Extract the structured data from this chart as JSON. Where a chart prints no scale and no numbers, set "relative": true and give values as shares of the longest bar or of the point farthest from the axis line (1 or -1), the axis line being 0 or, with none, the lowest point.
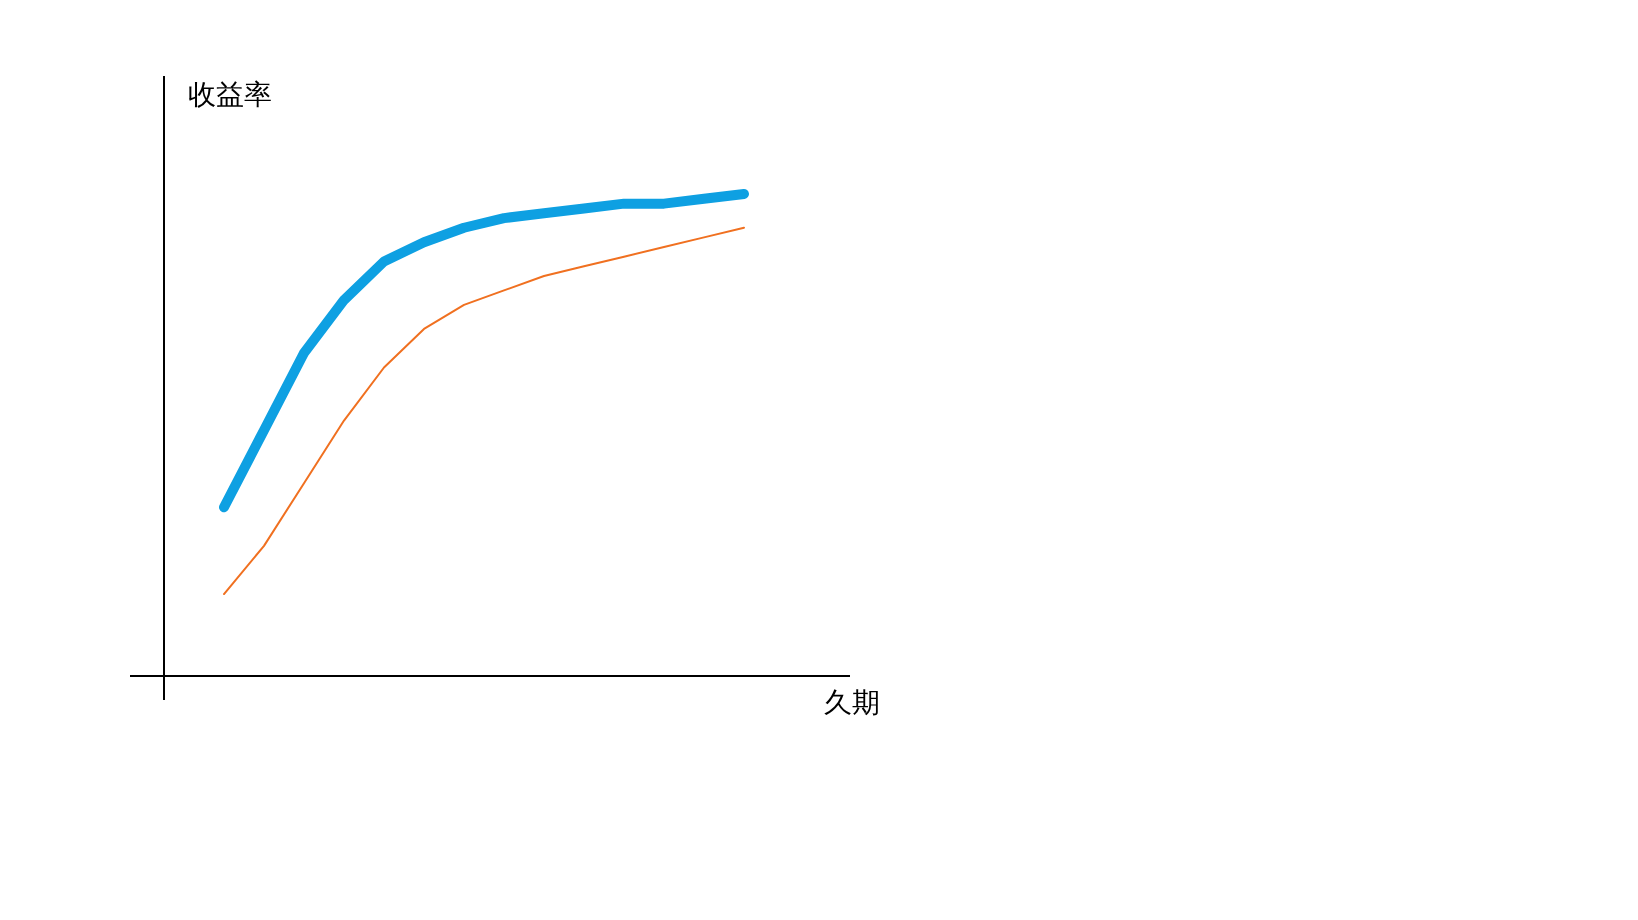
{
  "chart_data": {
    "type": "line",
    "relative": true,
    "xlabel": "久期",
    "ylabel": "收益率",
    "categories": [
      null,
      null,
      null,
      null,
      null,
      null,
      null,
      null,
      null,
      null,
      null,
      null,
      null,
      null
    ],
    "marker": "none",
    "line_style": "solid",
    "series": [
      {
        "color": "#0ea0e2",
        "values": [
          0.35,
          0.51,
          0.67,
          0.78,
          0.86,
          0.9,
          0.93,
          0.95,
          0.96,
          0.97,
          0.98,
          0.98,
          0.99,
          1
        ]
      },
      {
        "color": "#f07020",
        "values": [
          0.17,
          0.27,
          0.4,
          0.53,
          0.64,
          0.72,
          0.77,
          0.8,
          0.83,
          0.85,
          0.87,
          0.89,
          0.91,
          0.93
        ]
      }
    ]
  }
}
